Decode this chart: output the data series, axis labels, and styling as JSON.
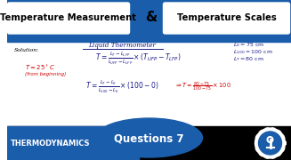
{
  "title_left": "Temperature Measurement",
  "title_amp": "&",
  "title_right": "Temperature Scales",
  "header_bg": "#1a5dab",
  "main_bg": "#f0f0f0",
  "bottom_text": "THERMODYNAMICS",
  "bottom_questions": "Questions 7",
  "solution_label": "Solution:",
  "liquid_thermo": "Liquid Thermometer",
  "accent_color": "#cc0000",
  "navy": "#1a1a8a",
  "dark_blue": "#1a5dab",
  "white": "#ffffff",
  "black": "#000000"
}
